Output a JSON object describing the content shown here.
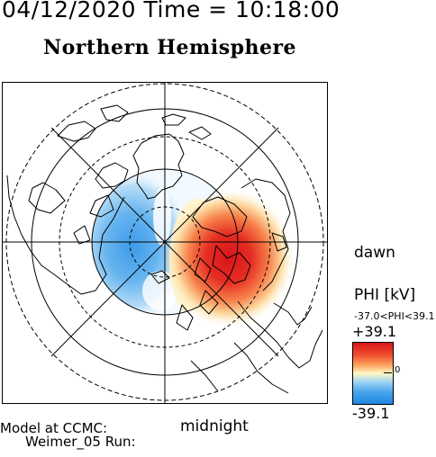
{
  "header": {
    "datetime": "04/12/2020 Time = 10:18:00",
    "hemisphere": "Northern Hemisphere"
  },
  "map": {
    "dawn_label": "dawn",
    "midnight_label": "midnight"
  },
  "colorbar": {
    "title": "PHI [kV]",
    "range_text": "-37.0<PHI<39.1",
    "max_label": "+39.1",
    "zero_label": "0",
    "min_label": "-39.1",
    "colors": {
      "max": "#d8141a",
      "mid": "#fff6c4",
      "min": "#1f86e0"
    }
  },
  "footer": {
    "model_line1": "Model at CCMC:",
    "model_line2": "Weimer_05 Run:"
  }
}
